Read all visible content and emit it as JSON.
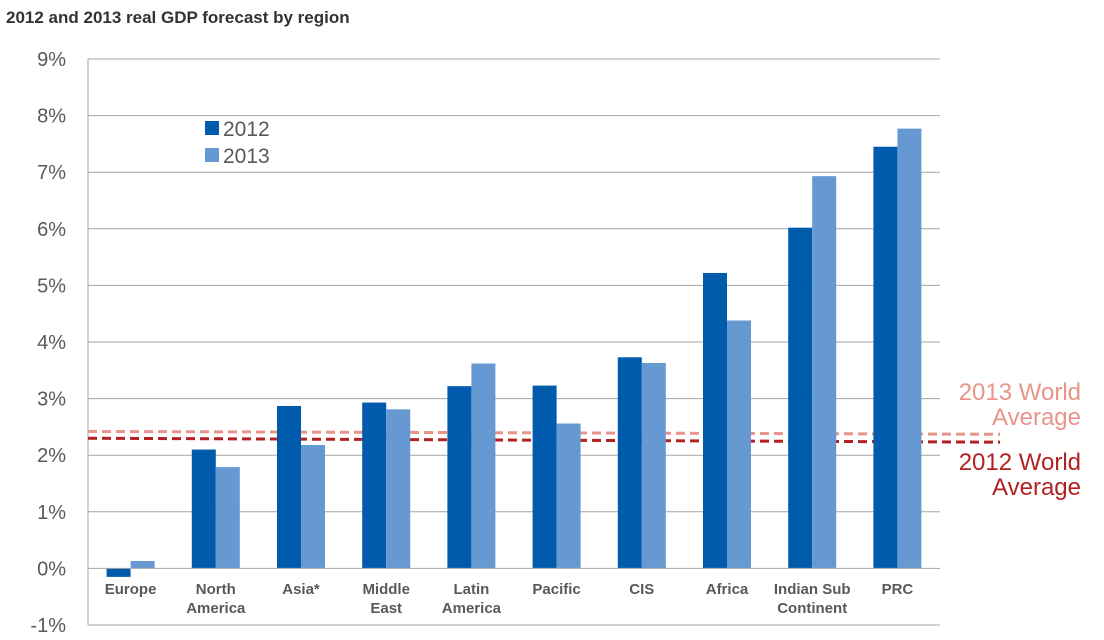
{
  "chart_data": {
    "type": "bar",
    "title": "2012 and 2013 real GDP forecast by region",
    "xlabel": "",
    "ylabel": "",
    "ylim": [
      -1,
      9
    ],
    "y_ticks": [
      "-1%",
      "0%",
      "1%",
      "2%",
      "3%",
      "4%",
      "5%",
      "6%",
      "7%",
      "8%",
      "9%"
    ],
    "y_tick_values": [
      -1,
      0,
      1,
      2,
      3,
      4,
      5,
      6,
      7,
      8,
      9
    ],
    "grid": true,
    "legend_position": "top-left",
    "categories": [
      [
        "Europe"
      ],
      [
        "North",
        "America"
      ],
      [
        "Asia*"
      ],
      [
        "Middle",
        "East"
      ],
      [
        "Latin",
        "America"
      ],
      [
        "Pacific"
      ],
      [
        "CIS"
      ],
      [
        "Africa"
      ],
      [
        "Indian Sub",
        "Continent"
      ],
      [
        "PRC"
      ]
    ],
    "series": [
      {
        "name": "2012",
        "color": "#005BAC",
        "values": [
          -0.15,
          2.1,
          2.87,
          2.93,
          3.22,
          3.23,
          3.73,
          5.22,
          6.02,
          7.45
        ]
      },
      {
        "name": "2013",
        "color": "#6699D2",
        "values": [
          0.13,
          1.79,
          2.18,
          2.81,
          3.62,
          2.56,
          3.63,
          4.38,
          6.93,
          7.77
        ]
      }
    ],
    "reference_lines": [
      {
        "name": "2013 World Average",
        "label_lines": [
          "2013 World",
          "Average"
        ],
        "color": "#E8948A",
        "start": 2.42,
        "end": 2.37
      },
      {
        "name": "2012 World Average",
        "label_lines": [
          "2012 World",
          "Average"
        ],
        "color": "#B22222",
        "start": 2.3,
        "end": 2.23
      }
    ]
  }
}
